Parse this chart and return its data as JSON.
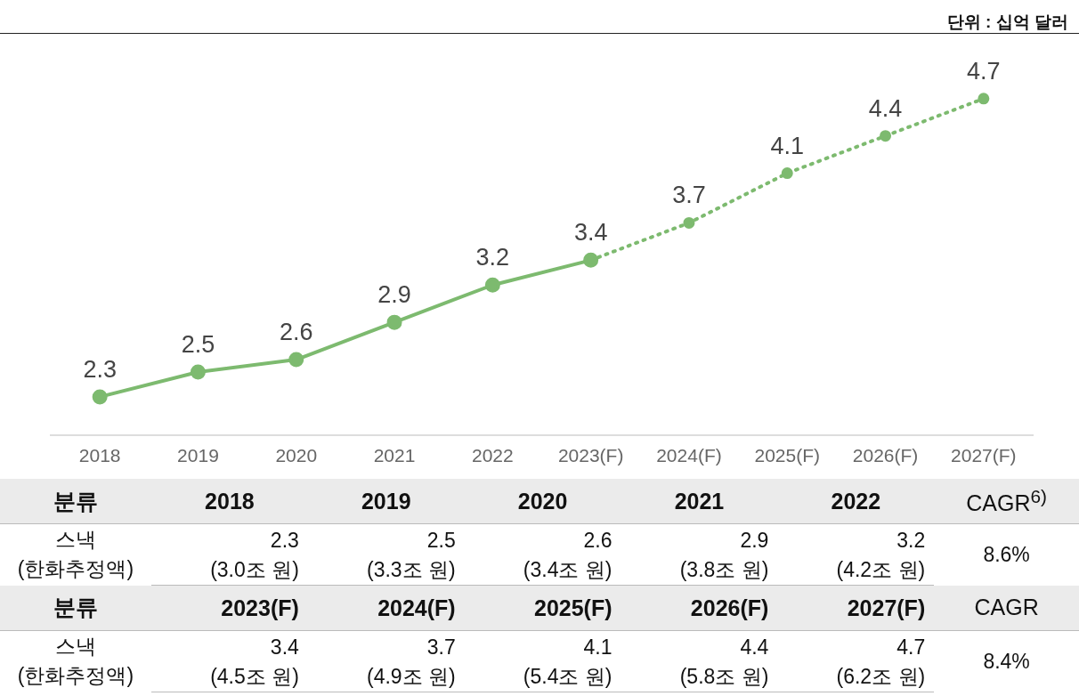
{
  "chart_data": {
    "type": "line",
    "subtitle": "단위 : 십억 달러",
    "categories": [
      "2018",
      "2019",
      "2020",
      "2021",
      "2022",
      "2023(F)",
      "2024(F)",
      "2025(F)",
      "2026(F)",
      "2027(F)"
    ],
    "series": [
      {
        "color": "#7dba6f",
        "line_style": "solid",
        "values": [
          2.3,
          2.5,
          2.6,
          2.9,
          3.2,
          3.4,
          null,
          null,
          null,
          null
        ],
        "value_labels": [
          "2.3",
          "2.5",
          "2.6",
          "2.9",
          "3.2",
          "3.4",
          null,
          null,
          null,
          null
        ]
      },
      {
        "color": "#7dba6f",
        "line_style": "dotted",
        "values": [
          null,
          null,
          null,
          null,
          null,
          3.4,
          3.7,
          4.1,
          4.4,
          4.7
        ],
        "value_labels": [
          null,
          null,
          null,
          null,
          null,
          null,
          "3.7",
          "4.1",
          "4.4",
          "4.7"
        ]
      }
    ],
    "marker": "circle",
    "grid": false,
    "legend": false,
    "annotations": [
      "분류",
      "스낵",
      "(한화추정액)",
      "CAGR$^{6)}$",
      "CAGR",
      "8.6%",
      "8.4%",
      "(3.0조 원)",
      "(3.3조 원)",
      "(3.4조 원)",
      "(3.8조 원)",
      "(4.2조 원)",
      "(4.5조 원)",
      "(4.9조 원)",
      "(5.4조 원)",
      "(5.8조 원)",
      "(6.2조 원)",
      "2.3",
      "2.5",
      "2.6",
      "2.9",
      "3.2",
      "3.4",
      "3.7",
      "4.1",
      "4.4",
      "4.7"
    ]
  }
}
